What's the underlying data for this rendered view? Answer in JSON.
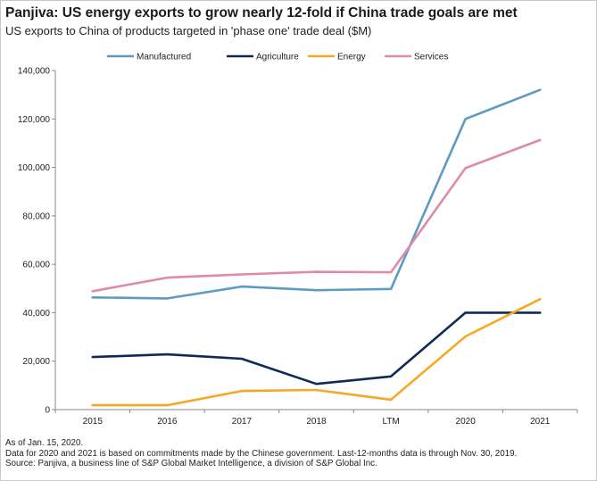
{
  "header": {
    "title": "Panjiva: US energy exports to grow nearly 12-fold if China trade goals are met",
    "subtitle": "US exports to China of products targeted in 'phase one' trade deal ($M)"
  },
  "footer": {
    "lines": [
      "As of Jan. 15, 2020.",
      "Data for 2020 and 2021 is based on commitments made by the Chinese government. Last-12-months data is through Nov. 30, 2019.",
      "Source: Panjiva, a business line of S&P Global Market Intelligence, a division of S&P Global Inc."
    ]
  },
  "chart_data": {
    "type": "line",
    "title": "Panjiva: US energy exports to grow nearly 12-fold if China trade goals are met",
    "subtitle": "US exports to China of products targeted in 'phase one' trade deal ($M)",
    "categories": [
      "2015",
      "2016",
      "2017",
      "2018",
      "LTM",
      "2020",
      "2021"
    ],
    "ylim": [
      0,
      140000
    ],
    "yticks": [
      0,
      20000,
      40000,
      60000,
      80000,
      100000,
      120000,
      140000
    ],
    "ytick_labels": [
      "0",
      "20,000",
      "40,000",
      "60,000",
      "80,000",
      "100,000",
      "120,000",
      "140,000"
    ],
    "legend_position": "top",
    "grid": false,
    "series": [
      {
        "name": "Manufactured",
        "color": "#5b9bc4",
        "values": [
          46300,
          45900,
          50800,
          49300,
          49800,
          120000,
          132000
        ]
      },
      {
        "name": "Agriculture",
        "color": "#0f2a56",
        "values": [
          21700,
          22800,
          21000,
          10600,
          13700,
          40000,
          40000
        ]
      },
      {
        "name": "Energy",
        "color": "#f7a823",
        "values": [
          1800,
          1800,
          7700,
          8100,
          4100,
          30200,
          45600
        ]
      },
      {
        "name": "Services",
        "color": "#de8aa9",
        "values": [
          48900,
          54500,
          55800,
          56900,
          56700,
          99700,
          111300
        ]
      }
    ]
  }
}
